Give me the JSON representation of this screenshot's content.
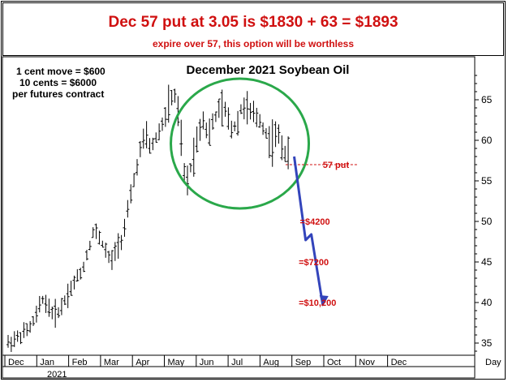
{
  "header": {
    "headline": "Dec 57 put at 3.05 is $1830 + 63 = $1893",
    "subline": "expire over 57, this option will be worthless"
  },
  "notes": [
    "1 cent move = $600",
    "10 cents = $6000",
    "per futures contract"
  ],
  "colors": {
    "headline": "#d01010",
    "circle": "#2aa84a",
    "projection": "#3344bb",
    "annotation": "#d01010"
  },
  "chart_data": {
    "type": "bar",
    "subtype": "ohlc",
    "title": "December 2021 Soybean Oil",
    "y_ticks": [
      35,
      40,
      45,
      50,
      55,
      60,
      65
    ],
    "ylim": [
      33,
      70
    ],
    "x_ticks": [
      "Dec",
      "Jan",
      "Feb",
      "Mar",
      "Apr",
      "May",
      "Jun",
      "Jul",
      "Aug",
      "Sep",
      "Oct",
      "Nov",
      "Dec",
      "Day"
    ],
    "year_label": "2021",
    "grid": false,
    "y_axis_side": "right",
    "price_path": [
      [
        0,
        35.0
      ],
      [
        2,
        35.8
      ],
      [
        4,
        37.0
      ],
      [
        5,
        38.5
      ],
      [
        6,
        40.5
      ],
      [
        7,
        39.5
      ],
      [
        8,
        38.5
      ],
      [
        9,
        39.0
      ],
      [
        10,
        40.5
      ],
      [
        11,
        41.8
      ],
      [
        12,
        43.0
      ],
      [
        13,
        44.0
      ],
      [
        14,
        46.5
      ],
      [
        15,
        49.0
      ],
      [
        16,
        48.0
      ],
      [
        17,
        46.5
      ],
      [
        18,
        44.8
      ],
      [
        19,
        47.0
      ],
      [
        20,
        48.0
      ],
      [
        21,
        51.5
      ],
      [
        22,
        55.0
      ],
      [
        23,
        58.5
      ],
      [
        24,
        60.5
      ],
      [
        25,
        59.0
      ],
      [
        26,
        60.5
      ],
      [
        27,
        62.0
      ],
      [
        28,
        64.0
      ],
      [
        29,
        66.0
      ],
      [
        30,
        62.0
      ],
      [
        31,
        54.0
      ],
      [
        32,
        57.0
      ],
      [
        33,
        60.0
      ],
      [
        34,
        63.0
      ],
      [
        35,
        60.5
      ],
      [
        36,
        62.5
      ],
      [
        37,
        64.0
      ],
      [
        38,
        63.5
      ],
      [
        39,
        61.5
      ],
      [
        40,
        62.0
      ],
      [
        41,
        64.5
      ],
      [
        42,
        63.5
      ],
      [
        43,
        63.0
      ],
      [
        44,
        62.5
      ],
      [
        45,
        61.0
      ],
      [
        46,
        59.5
      ],
      [
        47,
        61.0
      ],
      [
        48,
        59.0
      ],
      [
        49,
        58.0
      ]
    ],
    "projection": [
      [
        50,
        58.0
      ],
      [
        52,
        47.7
      ],
      [
        53,
        48.4
      ],
      [
        55,
        39.7
      ]
    ],
    "projection_arrow_end": [
      55,
      39.7
    ],
    "highlight_circle": {
      "center_x": 40.5,
      "center_y": 59.6,
      "label": ""
    },
    "annotations": [
      {
        "text": "57 put",
        "x": 55,
        "y": 57
      },
      {
        "text": "=$4200",
        "x": 51,
        "y": 50
      },
      {
        "text": "=$7200",
        "x": 50.8,
        "y": 45
      },
      {
        "text": "=$10,200",
        "x": 50.8,
        "y": 40
      }
    ],
    "strike_line": {
      "y": 57,
      "x_from": 48.5,
      "x_to": 61
    }
  }
}
